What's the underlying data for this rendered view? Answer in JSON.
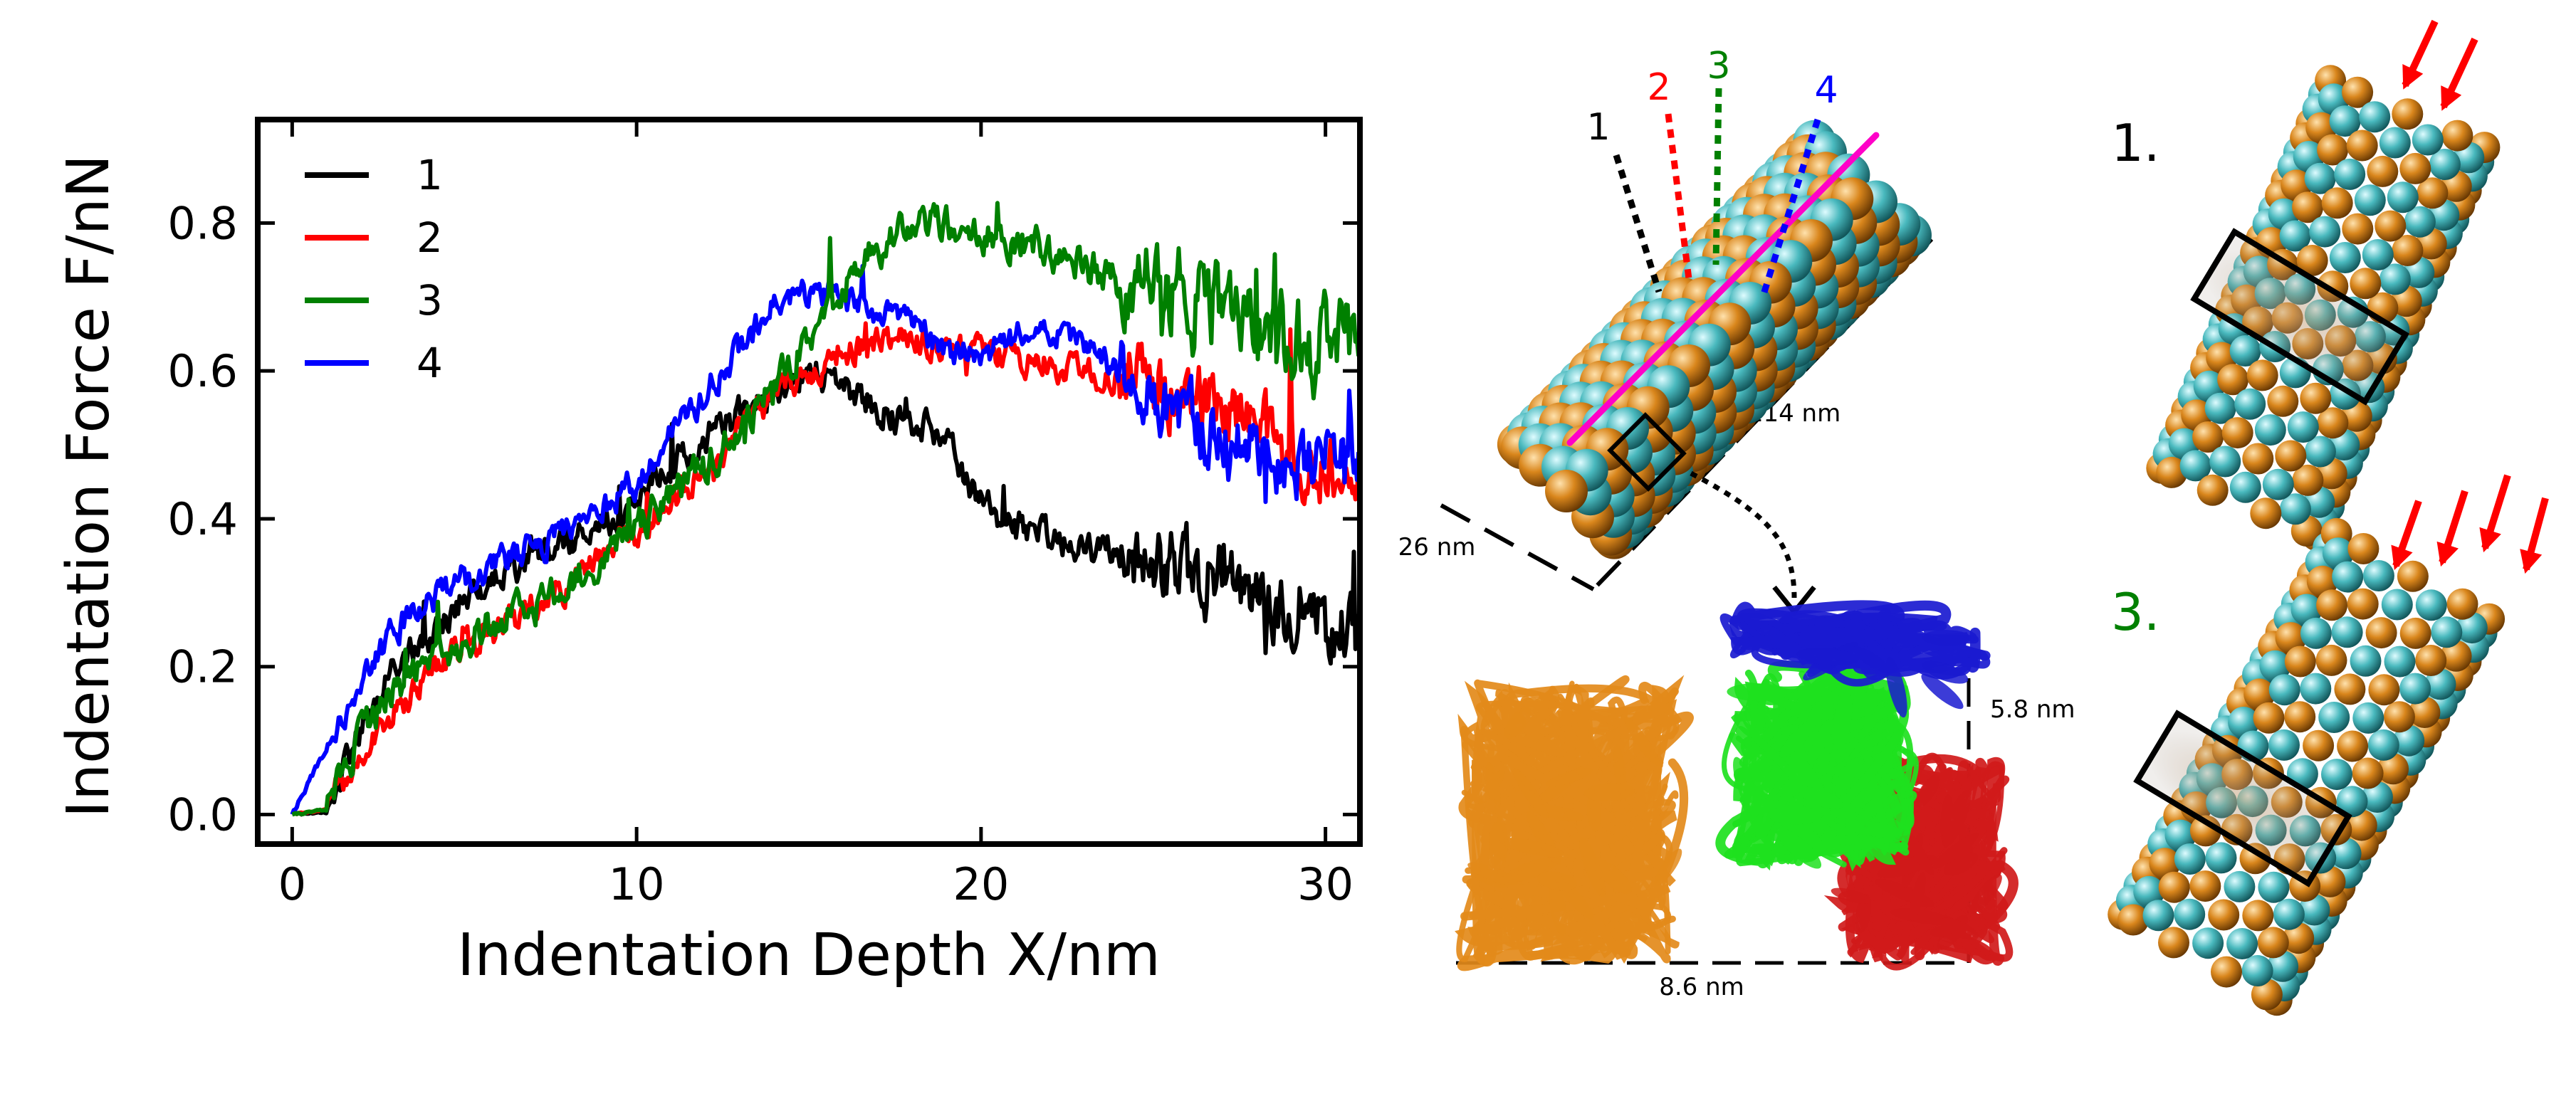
{
  "colors": {
    "series_1": "#000000",
    "series_2": "#ff0000",
    "series_3": "#008000",
    "series_4": "#0000ff",
    "bead_orange": "#c8740e",
    "bead_teal": "#3fb3b8",
    "protein_orange": "#e38a1a",
    "protein_green": "#1ee11e",
    "protein_red": "#d01a1a",
    "protein_blue": "#1a1ad0",
    "axis_line_magenta": "#ff00c8",
    "arrow_red": "#ff0000"
  },
  "chart_data": {
    "type": "line",
    "xlabel": "Indentation Depth X/nm",
    "ylabel": "Indentation Force F/nN",
    "xlim": [
      -1,
      31
    ],
    "ylim": [
      -0.04,
      0.94
    ],
    "xticks": [
      0,
      10,
      20,
      30
    ],
    "yticks": [
      0.0,
      0.2,
      0.4,
      0.6,
      0.8
    ],
    "xtick_labels": [
      "0",
      "10",
      "20",
      "30"
    ],
    "ytick_labels": [
      "0.0",
      "0.2",
      "0.4",
      "0.6",
      "0.8"
    ],
    "grid": false,
    "legend_position": "top-left",
    "series": [
      {
        "name": "1",
        "color": "#000000",
        "noise": 0.018,
        "x": [
          0,
          1,
          2,
          3,
          4,
          5,
          6,
          7,
          8,
          9,
          10,
          11,
          12,
          13,
          14,
          15,
          16,
          17,
          18,
          19,
          20,
          21,
          22,
          23,
          24,
          25,
          26,
          27,
          28,
          29,
          30,
          31
        ],
        "y": [
          0.0,
          0.01,
          0.11,
          0.2,
          0.24,
          0.29,
          0.32,
          0.35,
          0.37,
          0.39,
          0.43,
          0.47,
          0.51,
          0.54,
          0.57,
          0.6,
          0.58,
          0.55,
          0.53,
          0.51,
          0.42,
          0.39,
          0.38,
          0.36,
          0.36,
          0.35,
          0.33,
          0.31,
          0.3,
          0.29,
          0.26,
          0.25
        ]
      },
      {
        "name": "2",
        "color": "#ff0000",
        "noise": 0.016,
        "x": [
          0,
          1,
          2,
          3,
          4,
          5,
          6,
          7,
          8,
          9,
          10,
          11,
          12,
          13,
          14,
          15,
          16,
          17,
          18,
          19,
          20,
          21,
          22,
          23,
          24,
          25,
          26,
          27,
          28,
          29,
          30,
          31
        ],
        "y": [
          0.0,
          0.02,
          0.08,
          0.13,
          0.19,
          0.23,
          0.25,
          0.28,
          0.31,
          0.35,
          0.38,
          0.43,
          0.46,
          0.52,
          0.57,
          0.6,
          0.62,
          0.64,
          0.64,
          0.62,
          0.63,
          0.62,
          0.61,
          0.6,
          0.59,
          0.58,
          0.56,
          0.55,
          0.52,
          0.49,
          0.47,
          0.49
        ]
      },
      {
        "name": "3",
        "color": "#008000",
        "noise": 0.02,
        "x": [
          0,
          1,
          2,
          3,
          4,
          5,
          6,
          7,
          8,
          9,
          10,
          11,
          12,
          13,
          14,
          15,
          16,
          17,
          18,
          19,
          20,
          21,
          22,
          23,
          24,
          25,
          26,
          27,
          28,
          29,
          30,
          31
        ],
        "y": [
          0.0,
          0.02,
          0.1,
          0.17,
          0.21,
          0.24,
          0.26,
          0.28,
          0.31,
          0.35,
          0.39,
          0.43,
          0.47,
          0.52,
          0.58,
          0.64,
          0.71,
          0.77,
          0.79,
          0.8,
          0.78,
          0.78,
          0.76,
          0.74,
          0.72,
          0.7,
          0.69,
          0.68,
          0.66,
          0.64,
          0.63,
          0.63
        ]
      },
      {
        "name": "4",
        "color": "#0000ff",
        "noise": 0.016,
        "x": [
          0,
          1,
          2,
          3,
          4,
          5,
          6,
          7,
          8,
          9,
          10,
          11,
          12,
          13,
          14,
          15,
          16,
          17,
          18,
          19,
          20,
          21,
          22,
          23,
          24,
          25,
          26,
          27,
          28,
          29,
          30,
          31
        ],
        "y": [
          0.0,
          0.09,
          0.19,
          0.25,
          0.29,
          0.32,
          0.34,
          0.36,
          0.38,
          0.41,
          0.45,
          0.52,
          0.57,
          0.63,
          0.69,
          0.71,
          0.7,
          0.68,
          0.66,
          0.63,
          0.62,
          0.65,
          0.66,
          0.63,
          0.6,
          0.56,
          0.53,
          0.5,
          0.49,
          0.47,
          0.48,
          0.5
        ]
      }
    ]
  },
  "panels": {
    "filament": {
      "labels": [
        "1",
        "2",
        "3",
        "4"
      ],
      "length_label": "114 nm",
      "width_label": "26 nm"
    },
    "dimer": {
      "height_label": "5.8 nm",
      "width_label": "8.6 nm"
    },
    "snapshots": {
      "top_label": "1.",
      "bottom_label": "3."
    }
  }
}
